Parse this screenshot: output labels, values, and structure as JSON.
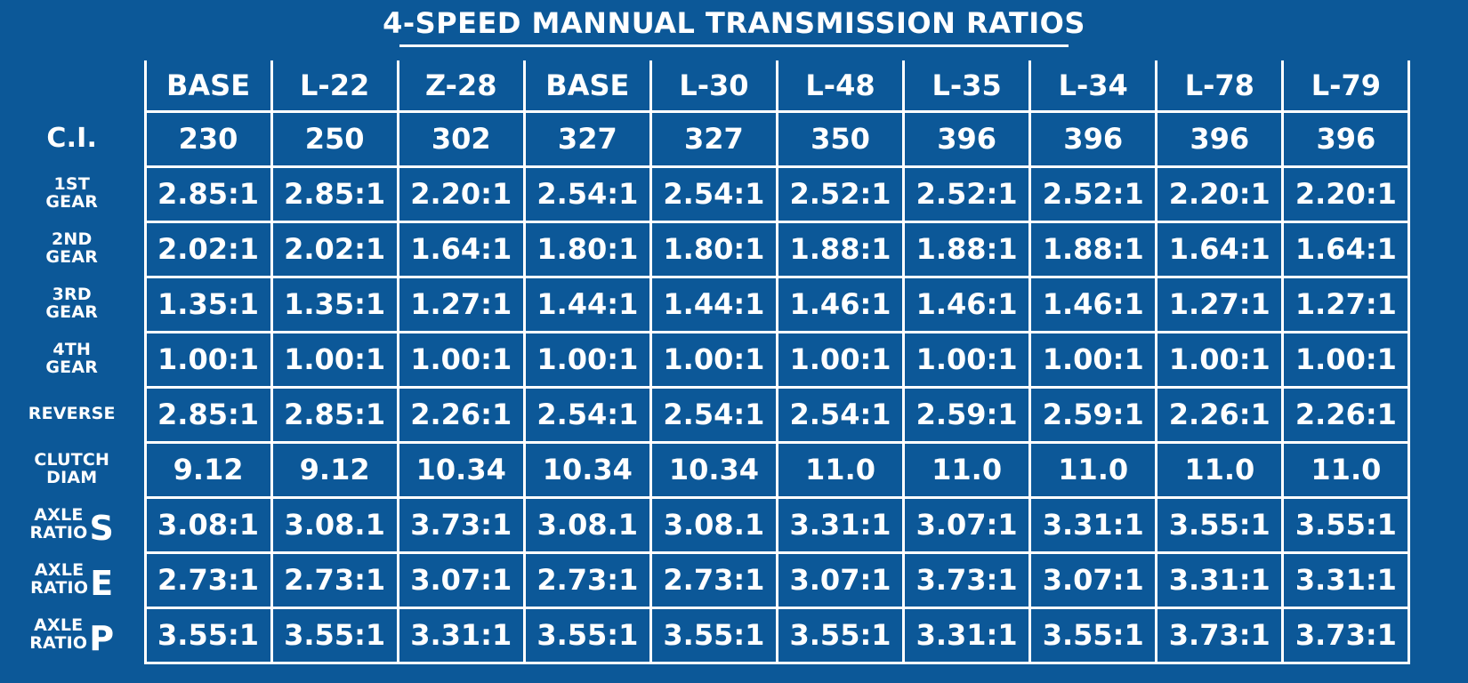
{
  "title": "4-SPEED MANNUAL TRANSMISSION RATIOS",
  "models": [
    "BASE",
    "L-22",
    "Z-28",
    "BASE",
    "L-30",
    "L-48",
    "L-35",
    "L-34",
    "L-78",
    "L-79"
  ],
  "rows": [
    {
      "label_lines": [
        "C.I."
      ],
      "values": [
        "230",
        "250",
        "302",
        "327",
        "327",
        "350",
        "396",
        "396",
        "396",
        "396"
      ]
    },
    {
      "label_lines": [
        "1ST",
        "GEAR"
      ],
      "values": [
        "2.85:1",
        "2.85:1",
        "2.20:1",
        "2.54:1",
        "2.54:1",
        "2.52:1",
        "2.52:1",
        "2.52:1",
        "2.20:1",
        "2.20:1"
      ]
    },
    {
      "label_lines": [
        "2ND",
        "GEAR"
      ],
      "values": [
        "2.02:1",
        "2.02:1",
        "1.64:1",
        "1.80:1",
        "1.80:1",
        "1.88:1",
        "1.88:1",
        "1.88:1",
        "1.64:1",
        "1.64:1"
      ]
    },
    {
      "label_lines": [
        "3RD",
        "GEAR"
      ],
      "values": [
        "1.35:1",
        "1.35:1",
        "1.27:1",
        "1.44:1",
        "1.44:1",
        "1.46:1",
        "1.46:1",
        "1.46:1",
        "1.27:1",
        "1.27:1"
      ]
    },
    {
      "label_lines": [
        "4TH",
        "GEAR"
      ],
      "values": [
        "1.00:1",
        "1.00:1",
        "1.00:1",
        "1.00:1",
        "1.00:1",
        "1.00:1",
        "1.00:1",
        "1.00:1",
        "1.00:1",
        "1.00:1"
      ]
    },
    {
      "label_lines": [
        "REVERSE"
      ],
      "values": [
        "2.85:1",
        "2.85:1",
        "2.26:1",
        "2.54:1",
        "2.54:1",
        "2.54:1",
        "2.59:1",
        "2.59:1",
        "2.26:1",
        "2.26:1"
      ]
    },
    {
      "label_lines": [
        "CLUTCH",
        "DIAM"
      ],
      "values": [
        "9.12",
        "9.12",
        "10.34",
        "10.34",
        "10.34",
        "11.0",
        "11.0",
        "11.0",
        "11.0",
        "11.0"
      ]
    },
    {
      "label_lines": [
        "AXLE",
        "RATIO"
      ],
      "label_letter": "S",
      "values": [
        "3.08:1",
        "3.08.1",
        "3.73:1",
        "3.08.1",
        "3.08.1",
        "3.31:1",
        "3.07:1",
        "3.31:1",
        "3.55:1",
        "3.55:1"
      ]
    },
    {
      "label_lines": [
        "AXLE",
        "RATIO"
      ],
      "label_letter": "E",
      "values": [
        "2.73:1",
        "2.73:1",
        "3.07:1",
        "2.73:1",
        "2.73:1",
        "3.07:1",
        "3.73:1",
        "3.07:1",
        "3.31:1",
        "3.31:1"
      ]
    },
    {
      "label_lines": [
        "AXLE",
        "RATIO"
      ],
      "label_letter": "P",
      "values": [
        "3.55:1",
        "3.55:1",
        "3.31:1",
        "3.55:1",
        "3.55:1",
        "3.55:1",
        "3.31:1",
        "3.55:1",
        "3.73:1",
        "3.73:1"
      ]
    }
  ]
}
